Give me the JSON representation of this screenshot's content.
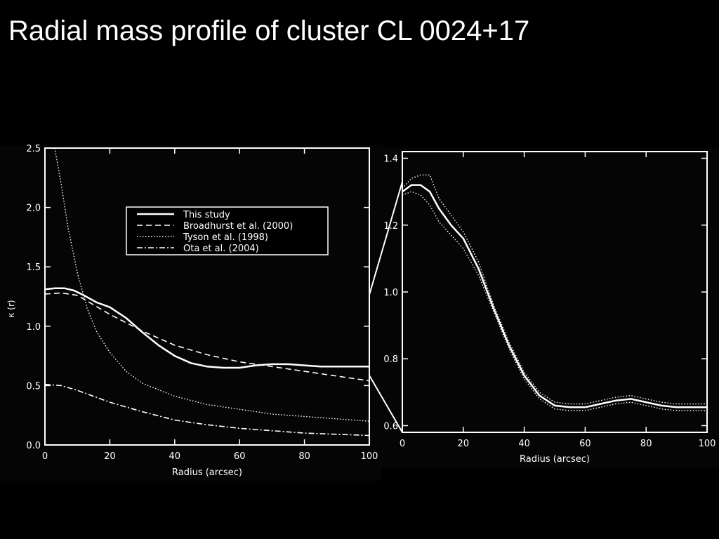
{
  "title": "Radial mass profile of cluster CL 0024+17",
  "chart_data": [
    {
      "type": "line",
      "xlabel": "Radius (arcsec)",
      "ylabel": "κ (r)",
      "xlim": [
        0,
        100
      ],
      "ylim": [
        0,
        2.5
      ],
      "xticks": [
        "0",
        "20",
        "40",
        "60",
        "80",
        "100"
      ],
      "yticks": [
        "0.0",
        "0.5",
        "1.0",
        "1.5",
        "2.0",
        "2.5"
      ],
      "legend_position": "top-right",
      "series": [
        {
          "name": "This study",
          "style": "solid",
          "x": [
            0,
            3,
            6,
            9,
            12,
            16,
            20,
            25,
            30,
            35,
            40,
            45,
            50,
            55,
            60,
            65,
            70,
            75,
            80,
            85,
            90,
            95,
            100
          ],
          "y": [
            1.31,
            1.32,
            1.32,
            1.3,
            1.26,
            1.2,
            1.16,
            1.07,
            0.95,
            0.84,
            0.75,
            0.69,
            0.66,
            0.65,
            0.65,
            0.67,
            0.68,
            0.68,
            0.67,
            0.66,
            0.66,
            0.66,
            0.66
          ]
        },
        {
          "name": "Broadhurst et al. (2000)",
          "style": "dashed",
          "x": [
            0,
            5,
            10,
            15,
            20,
            30,
            40,
            50,
            60,
            70,
            80,
            90,
            100
          ],
          "y": [
            1.27,
            1.28,
            1.26,
            1.18,
            1.1,
            0.96,
            0.84,
            0.76,
            0.7,
            0.66,
            0.62,
            0.58,
            0.54
          ]
        },
        {
          "name": "Tyson et al. (1998)",
          "style": "dotted",
          "x": [
            3,
            5,
            7,
            10,
            13,
            16,
            20,
            25,
            30,
            40,
            50,
            60,
            70,
            80,
            90,
            100
          ],
          "y": [
            2.5,
            2.2,
            1.85,
            1.45,
            1.15,
            0.95,
            0.78,
            0.62,
            0.52,
            0.41,
            0.34,
            0.3,
            0.26,
            0.24,
            0.22,
            0.2
          ]
        },
        {
          "name": "Ota et al. (2004)",
          "style": "dashdot",
          "x": [
            0,
            5,
            10,
            20,
            30,
            40,
            50,
            60,
            70,
            80,
            90,
            100
          ],
          "y": [
            0.51,
            0.5,
            0.46,
            0.36,
            0.28,
            0.21,
            0.17,
            0.14,
            0.12,
            0.1,
            0.09,
            0.08
          ]
        }
      ]
    },
    {
      "type": "line",
      "xlabel": "Radius (arcsec)",
      "ylabel": "",
      "xlim": [
        0,
        100
      ],
      "ylim": [
        0.58,
        1.42
      ],
      "xticks": [
        "0",
        "20",
        "40",
        "60",
        "80",
        "100"
      ],
      "yticks": [
        {
          "value": 0.6,
          "label": "0.6"
        },
        {
          "value": 0.8,
          "label": "0.8"
        },
        {
          "value": 1.0,
          "label": "1.0"
        },
        {
          "value": 1.2,
          "label": "1.2"
        },
        {
          "value": 1.4,
          "label": "1.4"
        }
      ],
      "series": [
        {
          "style": "solid",
          "x": [
            0,
            3,
            6,
            9,
            12,
            16,
            20,
            25,
            30,
            35,
            40,
            45,
            50,
            55,
            60,
            65,
            70,
            75,
            80,
            85,
            90,
            95,
            100
          ],
          "y": [
            1.3,
            1.32,
            1.32,
            1.3,
            1.25,
            1.2,
            1.16,
            1.07,
            0.95,
            0.84,
            0.75,
            0.69,
            0.66,
            0.655,
            0.655,
            0.665,
            0.675,
            0.68,
            0.67,
            0.66,
            0.655,
            0.655,
            0.655
          ]
        },
        {
          "style": "dotted",
          "x": [
            0,
            3,
            6,
            9,
            12,
            16,
            20,
            25,
            30,
            35,
            40,
            45,
            50,
            55,
            60,
            65,
            70,
            75,
            80,
            85,
            90,
            95,
            100
          ],
          "y": [
            1.31,
            1.34,
            1.35,
            1.35,
            1.28,
            1.23,
            1.18,
            1.09,
            0.96,
            0.85,
            0.76,
            0.7,
            0.67,
            0.665,
            0.665,
            0.675,
            0.685,
            0.69,
            0.68,
            0.67,
            0.665,
            0.665,
            0.665
          ]
        },
        {
          "style": "dotted",
          "x": [
            0,
            3,
            6,
            9,
            12,
            16,
            20,
            25,
            30,
            35,
            40,
            45,
            50,
            55,
            60,
            65,
            70,
            75,
            80,
            85,
            90,
            95,
            100
          ],
          "y": [
            1.29,
            1.3,
            1.29,
            1.26,
            1.21,
            1.17,
            1.13,
            1.05,
            0.94,
            0.83,
            0.74,
            0.68,
            0.65,
            0.645,
            0.645,
            0.655,
            0.665,
            0.67,
            0.66,
            0.65,
            0.645,
            0.645,
            0.645
          ]
        }
      ]
    }
  ]
}
